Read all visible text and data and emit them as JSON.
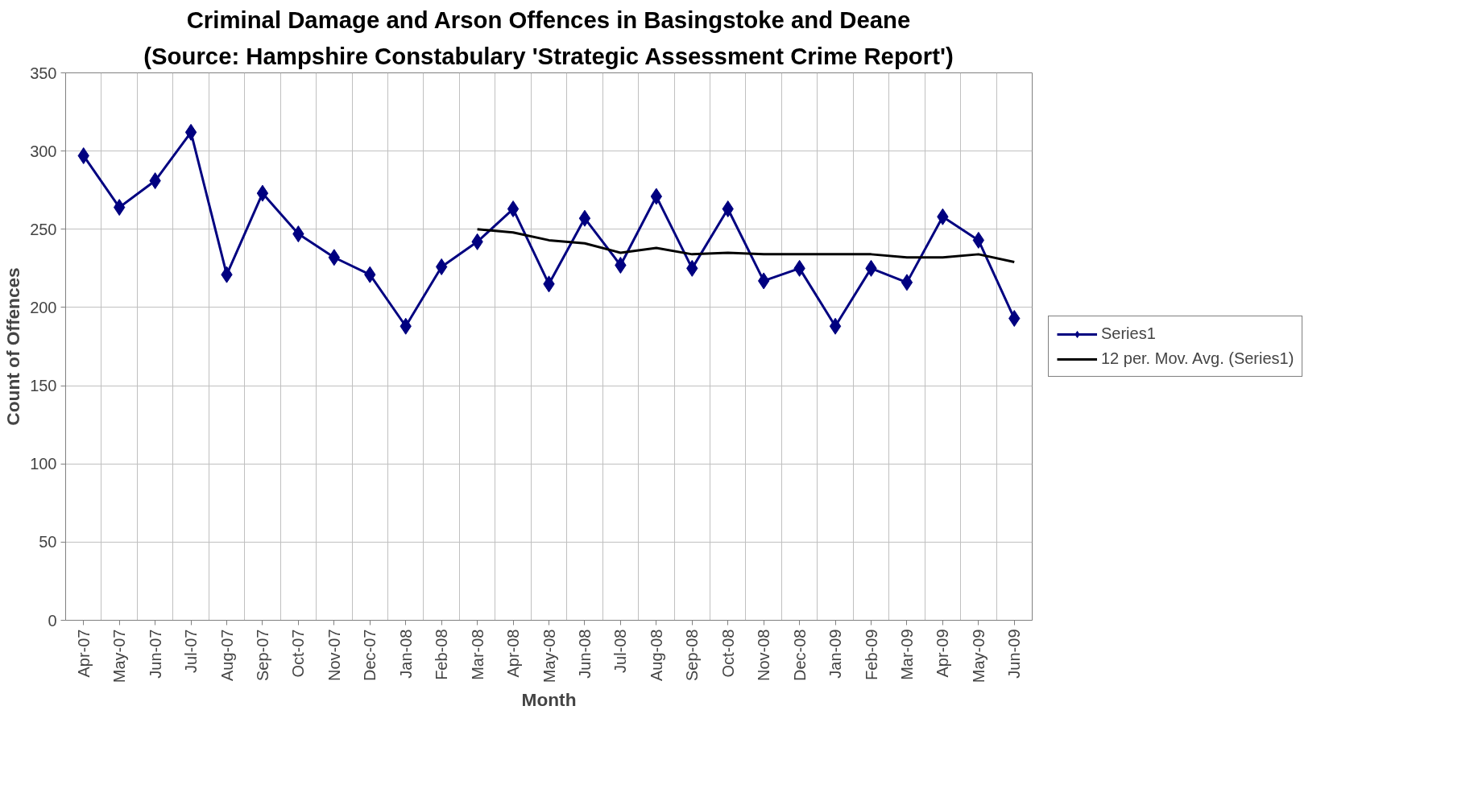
{
  "chart_data": {
    "type": "line",
    "title": "Criminal Damage and Arson Offences in Basingstoke and Deane",
    "subtitle": "(Source: Hampshire Constabulary 'Strategic Assessment Crime Report')",
    "xlabel": "Month",
    "ylabel": "Count of Offences",
    "categories": [
      "Apr-07",
      "May-07",
      "Jun-07",
      "Jul-07",
      "Aug-07",
      "Sep-07",
      "Oct-07",
      "Nov-07",
      "Dec-07",
      "Jan-08",
      "Feb-08",
      "Mar-08",
      "Apr-08",
      "May-08",
      "Jun-08",
      "Jul-08",
      "Aug-08",
      "Sep-08",
      "Oct-08",
      "Nov-08",
      "Dec-08",
      "Jan-09",
      "Feb-09",
      "Mar-09",
      "Apr-09",
      "May-09",
      "Jun-09"
    ],
    "series": [
      {
        "name": "Series1",
        "color": "#000080",
        "marker": "diamond",
        "values": [
          297,
          264,
          281,
          312,
          221,
          273,
          247,
          232,
          221,
          188,
          226,
          242,
          263,
          215,
          257,
          227,
          271,
          225,
          263,
          217,
          225,
          188,
          225,
          216,
          258,
          243,
          193
        ]
      },
      {
        "name": "12 per. Mov. Avg. (Series1)",
        "color": "#000000",
        "marker": "none",
        "values": [
          null,
          null,
          null,
          null,
          null,
          null,
          null,
          null,
          null,
          null,
          null,
          250,
          248,
          243,
          241,
          235,
          238,
          234,
          235,
          234,
          234,
          234,
          234,
          232,
          232,
          234,
          229
        ]
      }
    ],
    "ylim": [
      0,
      350
    ],
    "yticks": [
      0,
      50,
      100,
      150,
      200,
      250,
      300,
      350
    ],
    "grid": true,
    "legend": "right",
    "line_style": "solid"
  }
}
